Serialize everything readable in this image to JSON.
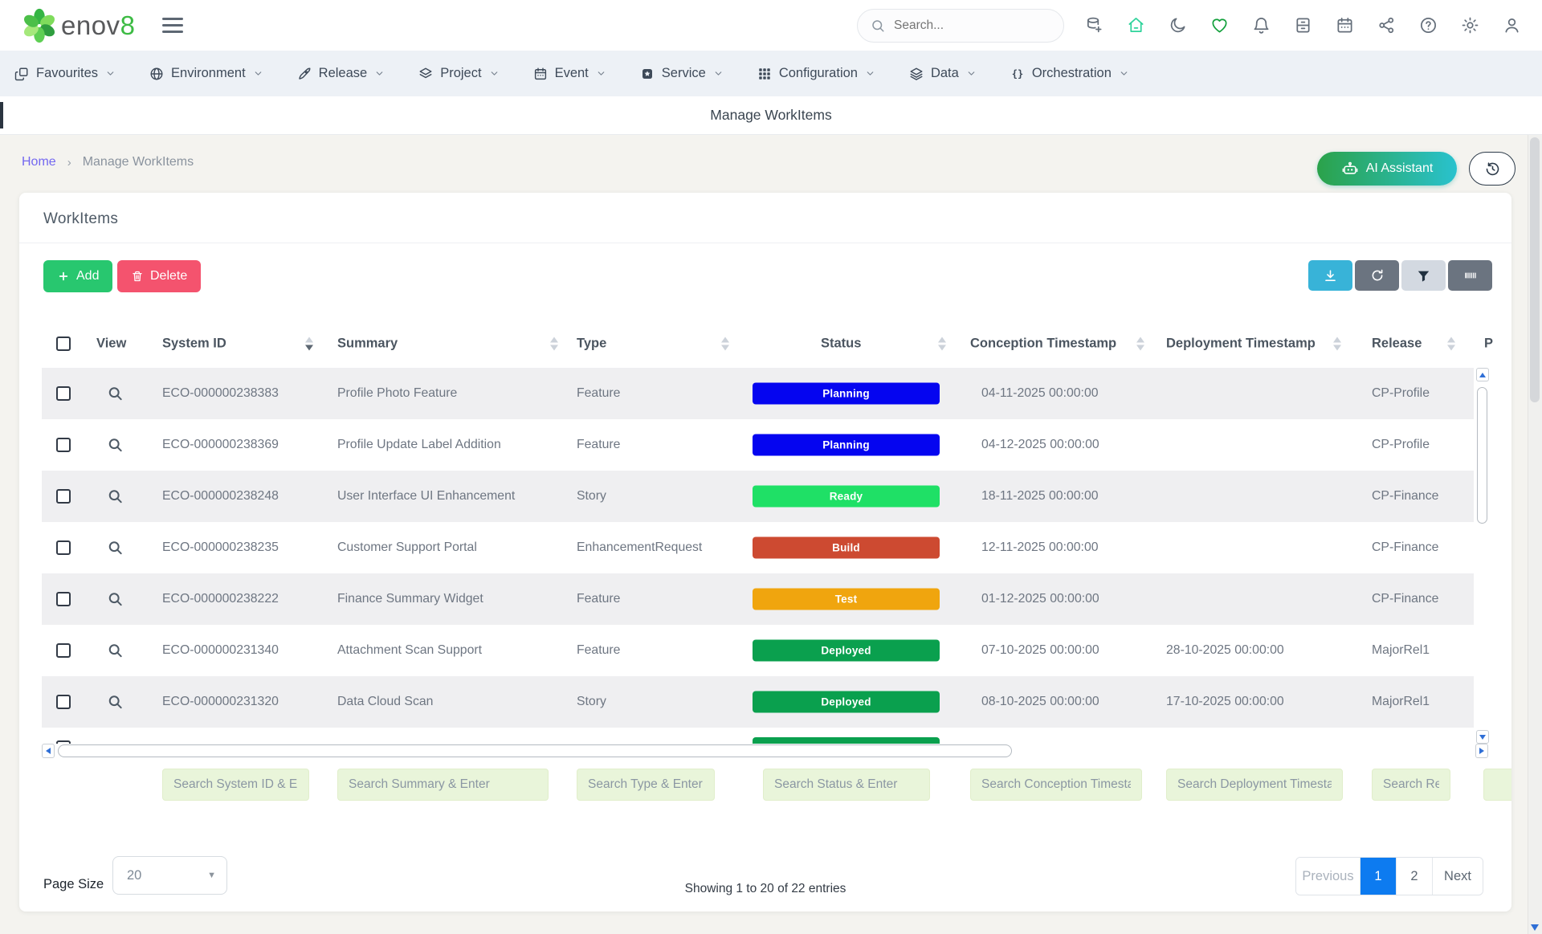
{
  "brand": {
    "name_prefix": "enov",
    "name_suffix": "8"
  },
  "topbar": {
    "search_placeholder": "Search...",
    "icons": [
      {
        "name": "add-dataset",
        "color": "#646e7a"
      },
      {
        "name": "home",
        "color": "#2fd39b"
      },
      {
        "name": "dark-mode-moon",
        "color": "#646e7a"
      },
      {
        "name": "favourites-heart",
        "color": "#13a03c"
      },
      {
        "name": "notifications-bell",
        "color": "#646e7a"
      },
      {
        "name": "archive",
        "color": "#646e7a"
      },
      {
        "name": "calendar",
        "color": "#646e7a"
      },
      {
        "name": "share",
        "color": "#646e7a"
      },
      {
        "name": "help",
        "color": "#646e7a"
      },
      {
        "name": "settings-gear",
        "color": "#646e7a"
      },
      {
        "name": "user-profile",
        "color": "#646e7a"
      }
    ]
  },
  "nav": {
    "items": [
      {
        "label": "Favourites",
        "icon": "copy"
      },
      {
        "label": "Environment",
        "icon": "globe"
      },
      {
        "label": "Release",
        "icon": "rocket"
      },
      {
        "label": "Project",
        "icon": "layers"
      },
      {
        "label": "Event",
        "icon": "calendar"
      },
      {
        "label": "Service",
        "icon": "badge"
      },
      {
        "label": "Configuration",
        "icon": "grid"
      },
      {
        "label": "Data",
        "icon": "stack"
      },
      {
        "label": "Orchestration",
        "icon": "braces"
      }
    ]
  },
  "title_bar": {
    "title": "Manage WorkItems"
  },
  "breadcrumb": {
    "home": "Home",
    "separator": "›",
    "current": "Manage WorkItems"
  },
  "actions": {
    "ai_assistant_label": "AI Assistant"
  },
  "panel": {
    "title": "WorkItems",
    "add_label": "Add",
    "delete_label": "Delete"
  },
  "table": {
    "columns": [
      "View",
      "System ID",
      "Summary",
      "Type",
      "Status",
      "Conception Timestamp",
      "Deployment Timestamp",
      "Release",
      "P"
    ],
    "sorted_column": "System ID",
    "sort_direction": "desc",
    "rows": [
      {
        "id": "ECO-000000238383",
        "summary": "Profile Photo Feature",
        "type": "Feature",
        "status": "Planning",
        "conception": "04-11-2025 00:00:00",
        "deployment": "",
        "release": "CP-Profile"
      },
      {
        "id": "ECO-000000238369",
        "summary": "Profile Update Label Addition",
        "type": "Feature",
        "status": "Planning",
        "conception": "04-12-2025 00:00:00",
        "deployment": "",
        "release": "CP-Profile"
      },
      {
        "id": "ECO-000000238248",
        "summary": "User Interface UI Enhancement",
        "type": "Story",
        "status": "Ready",
        "conception": "18-11-2025 00:00:00",
        "deployment": "",
        "release": "CP-Finance"
      },
      {
        "id": "ECO-000000238235",
        "summary": "Customer Support Portal",
        "type": "EnhancementRequest",
        "status": "Build",
        "conception": "12-11-2025 00:00:00",
        "deployment": "",
        "release": "CP-Finance"
      },
      {
        "id": "ECO-000000238222",
        "summary": "Finance Summary Widget",
        "type": "Feature",
        "status": "Test",
        "conception": "01-12-2025 00:00:00",
        "deployment": "",
        "release": "CP-Finance"
      },
      {
        "id": "ECO-000000231340",
        "summary": "Attachment Scan Support",
        "type": "Feature",
        "status": "Deployed",
        "conception": "07-10-2025 00:00:00",
        "deployment": "28-10-2025 00:00:00",
        "release": "MajorRel1"
      },
      {
        "id": "ECO-000000231320",
        "summary": "Data Cloud Scan",
        "type": "Story",
        "status": "Deployed",
        "conception": "08-10-2025 00:00:00",
        "deployment": "17-10-2025 00:00:00",
        "release": "MajorRel1"
      }
    ],
    "partial_row_status": "Deployed"
  },
  "filters": [
    {
      "placeholder": "Search System ID & Enter"
    },
    {
      "placeholder": "Search Summary & Enter"
    },
    {
      "placeholder": "Search Type & Enter"
    },
    {
      "placeholder": "Search Status & Enter"
    },
    {
      "placeholder": "Search Conception Timestamp & Enter"
    },
    {
      "placeholder": "Search Deployment Timestamp & Enter"
    },
    {
      "placeholder": "Search Release & Enter"
    },
    {
      "placeholder": ""
    }
  ],
  "footer": {
    "page_size_label": "Page Size",
    "page_size_value": "20",
    "showing_text": "Showing 1 to 20 of 22 entries",
    "pagination": [
      "Previous",
      "1",
      "2",
      "Next"
    ],
    "active_page": "1"
  },
  "colors": {
    "accent_green": "#28c76f",
    "delete_pink": "#f4536e",
    "download_blue": "#38b3d8",
    "active_page_blue": "#0d7bf0",
    "ai_gradient_start": "#2ba24a",
    "ai_gradient_end": "#29c2ce",
    "status": {
      "Planning": "#0505f0",
      "Ready": "#1fe066",
      "Build": "#cd4a31",
      "Test": "#f0a50e",
      "Deployed": "#0aa04e"
    }
  }
}
